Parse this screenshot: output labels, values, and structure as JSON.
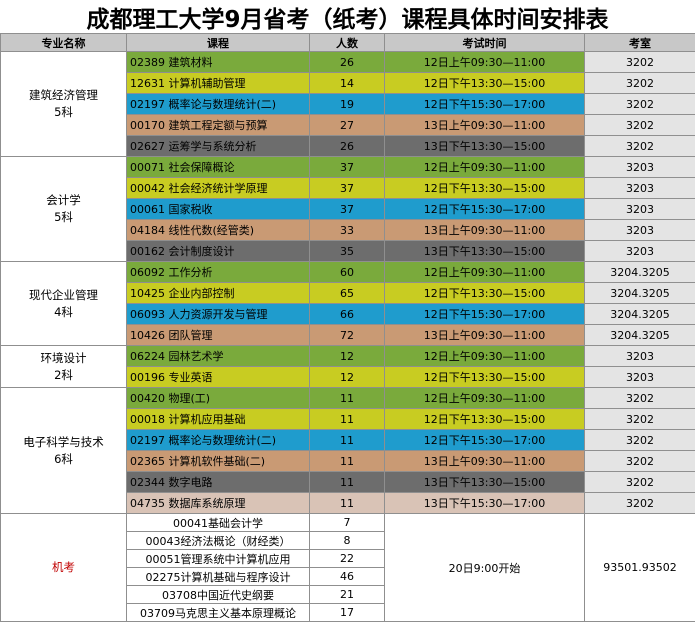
{
  "title": "成都理工大学9月省考（纸考）课程具体时间安排表",
  "headers": {
    "major": "专业名称",
    "course": "课程",
    "count": "人数",
    "time": "考试时间",
    "room": "考室"
  },
  "groups": [
    {
      "name": "建筑经济管理",
      "sub": "5科",
      "rows": [
        {
          "code": "02389",
          "course": "建筑材料",
          "count": "26",
          "time": "12日上午09:30—11:00",
          "room": "3202",
          "color": "green"
        },
        {
          "code": "12631",
          "course": "计算机辅助管理",
          "count": "14",
          "time": "12日下午13:30—15:00",
          "room": "3202",
          "color": "yellow"
        },
        {
          "code": "02197",
          "course": "概率论与数理统计(二)",
          "count": "19",
          "time": "12日下午15:30—17:00",
          "room": "3202",
          "color": "blue"
        },
        {
          "code": "00170",
          "course": "建筑工程定额与预算",
          "count": "27",
          "time": "13日上午09:30—11:00",
          "room": "3202",
          "color": "tan"
        },
        {
          "code": "02627",
          "course": "运筹学与系统分析",
          "count": "26",
          "time": "13日下午13:30—15:00",
          "room": "3202",
          "color": "dgray"
        }
      ]
    },
    {
      "name": "会计学",
      "sub": "5科",
      "rows": [
        {
          "code": "00071",
          "course": "社会保障概论",
          "count": "37",
          "time": "12日上午09:30—11:00",
          "room": "3203",
          "color": "green"
        },
        {
          "code": "00042",
          "course": "社会经济统计学原理",
          "count": "37",
          "time": "12日下午13:30—15:00",
          "room": "3203",
          "color": "yellow"
        },
        {
          "code": "00061",
          "course": "国家税收",
          "count": "37",
          "time": "12日下午15:30—17:00",
          "room": "3203",
          "color": "blue"
        },
        {
          "code": "04184",
          "course": "线性代数(经管类)",
          "count": "33",
          "time": "13日上午09:30—11:00",
          "room": "3203",
          "color": "tan"
        },
        {
          "code": "00162",
          "course": "会计制度设计",
          "count": "35",
          "time": "13日下午13:30—15:00",
          "room": "3203",
          "color": "dgray"
        }
      ]
    },
    {
      "name": "现代企业管理",
      "sub": "4科",
      "rows": [
        {
          "code": "06092",
          "course": "工作分析",
          "count": "60",
          "time": "12日上午09:30—11:00",
          "room": "3204.3205",
          "color": "green"
        },
        {
          "code": "10425",
          "course": "企业内部控制",
          "count": "65",
          "time": "12日下午13:30—15:00",
          "room": "3204.3205",
          "color": "yellow"
        },
        {
          "code": "06093",
          "course": "人力资源开发与管理",
          "count": "66",
          "time": "12日下午15:30—17:00",
          "room": "3204.3205",
          "color": "blue"
        },
        {
          "code": "10426",
          "course": "团队管理",
          "count": "72",
          "time": "13日上午09:30—11:00",
          "room": "3204.3205",
          "color": "tan"
        }
      ]
    },
    {
      "name": "环境设计",
      "sub": "2科",
      "rows": [
        {
          "code": "06224",
          "course": "园林艺术学",
          "count": "12",
          "time": "12日上午09:30—11:00",
          "room": "3203",
          "color": "green"
        },
        {
          "code": "00196",
          "course": "专业英语",
          "count": "12",
          "time": "12日下午13:30—15:00",
          "room": "3203",
          "color": "yellow"
        }
      ]
    },
    {
      "name": "电子科学与技术",
      "sub": "6科",
      "rows": [
        {
          "code": "00420",
          "course": "物理(工)",
          "count": "11",
          "time": "12日上午09:30—11:00",
          "room": "3202",
          "color": "green"
        },
        {
          "code": "00018",
          "course": "计算机应用基础",
          "count": "11",
          "time": "12日下午13:30—15:00",
          "room": "3202",
          "color": "yellow"
        },
        {
          "code": "02197",
          "course": "概率论与数理统计(二)",
          "count": "11",
          "time": "12日下午15:30—17:00",
          "room": "3202",
          "color": "blue"
        },
        {
          "code": "02365",
          "course": "计算机软件基础(二)",
          "count": "11",
          "time": "13日上午09:30—11:00",
          "room": "3202",
          "color": "tan"
        },
        {
          "code": "02344",
          "course": "数字电路",
          "count": "11",
          "time": "13日下午13:30—15:00",
          "room": "3202",
          "color": "dgray"
        },
        {
          "code": "04735",
          "course": "数据库系统原理",
          "count": "11",
          "time": "13日下午15:30—17:00",
          "room": "3202",
          "color": "lpink"
        }
      ]
    }
  ],
  "machine": {
    "label": "机考",
    "time": "20日9:00开始",
    "room": "93501.93502",
    "rows": [
      {
        "course": "00041基础会计学",
        "count": "7"
      },
      {
        "course": "00043经济法概论（财经类）",
        "count": "8"
      },
      {
        "course": "00051管理系统中计算机应用",
        "count": "22"
      },
      {
        "course": "02275计算机基础与程序设计",
        "count": "46"
      },
      {
        "course": "03708中国近代史纲要",
        "count": "21"
      },
      {
        "course": "03709马克思主义基本原理概论",
        "count": "17"
      }
    ]
  },
  "colors": {
    "green": "#7aaa3c",
    "yellow": "#c8cc22",
    "blue": "#1f9ccd",
    "tan": "#c99a74",
    "dgray": "#6d6d6d",
    "lpink": "#d9c3b6",
    "header": "#c8c8c8",
    "room": "#e4e4e4",
    "machine_label": "#c00000"
  }
}
